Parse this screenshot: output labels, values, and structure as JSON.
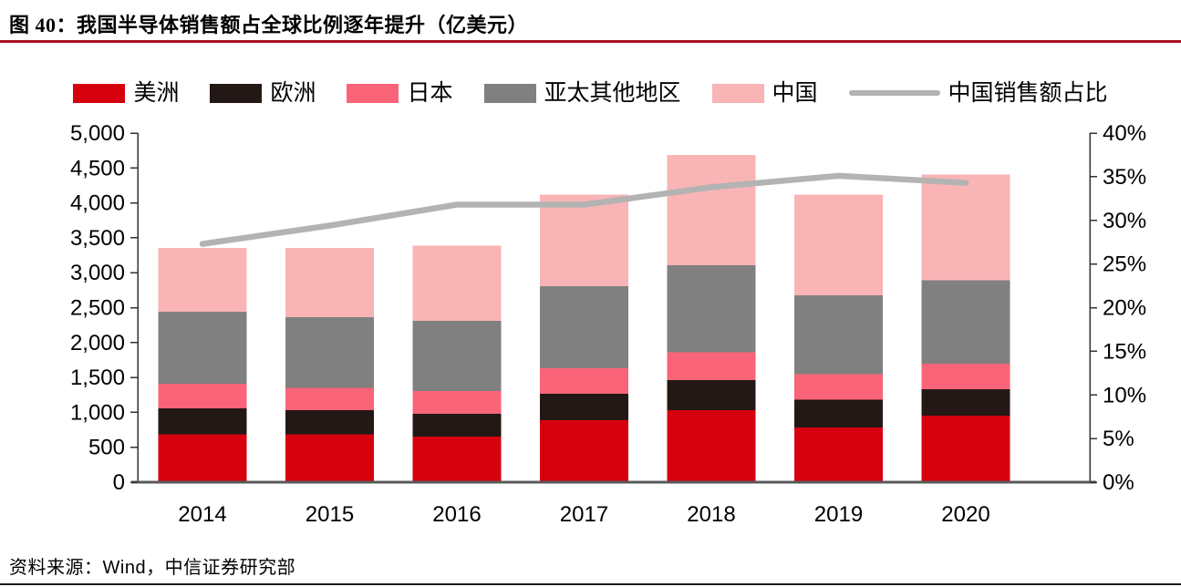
{
  "figure": {
    "title": "图 40：我国半导体销售额占全球比例逐年提升（亿美元）",
    "source": "资料来源：Wind，中信证券研究部"
  },
  "colors": {
    "title_underline": "#a81420",
    "bottom_rule": "#1a1a1a",
    "side_axis": "#333333",
    "x_axis": "#595959",
    "tick_text": "#000000"
  },
  "chart_data": {
    "type": "bar",
    "subtype": "stacked-bar-with-line",
    "title": "图 40：我国半导体销售额占全球比例逐年提升（亿美元）",
    "categories": [
      "2014",
      "2015",
      "2016",
      "2017",
      "2018",
      "2019",
      "2020"
    ],
    "series": [
      {
        "name": "美洲",
        "type": "bar",
        "color": "#d7000f",
        "values": [
          685,
          688,
          655,
          885,
          1030,
          786,
          954
        ]
      },
      {
        "name": "欧洲",
        "type": "bar",
        "color": "#231815",
        "values": [
          375,
          343,
          327,
          383,
          430,
          398,
          375
        ]
      },
      {
        "name": "日本",
        "type": "bar",
        "color": "#fa6478",
        "values": [
          348,
          319,
          323,
          366,
          400,
          360,
          365
        ]
      },
      {
        "name": "亚太其他地区",
        "type": "bar",
        "color": "#808080",
        "values": [
          1033,
          1016,
          1006,
          1176,
          1245,
          1132,
          1198
        ]
      },
      {
        "name": "中国",
        "type": "bar",
        "color": "#f9b4b5",
        "values": [
          917,
          986,
          1078,
          1312,
          1584,
          1445,
          1512
        ]
      },
      {
        "name": "中国销售额占比",
        "type": "line",
        "axis": "right",
        "color": "#b3b3b3",
        "values": [
          27.3,
          29.4,
          31.8,
          31.8,
          33.8,
          35.1,
          34.3
        ]
      }
    ],
    "left_axis": {
      "min": 0,
      "max": 5000,
      "step": 500,
      "format": "thousands-comma"
    },
    "right_axis": {
      "min": 0,
      "max": 40,
      "step": 5,
      "suffix": "%"
    },
    "legend_position": "top",
    "grid": false,
    "xlabel": "",
    "ylabel": ""
  }
}
